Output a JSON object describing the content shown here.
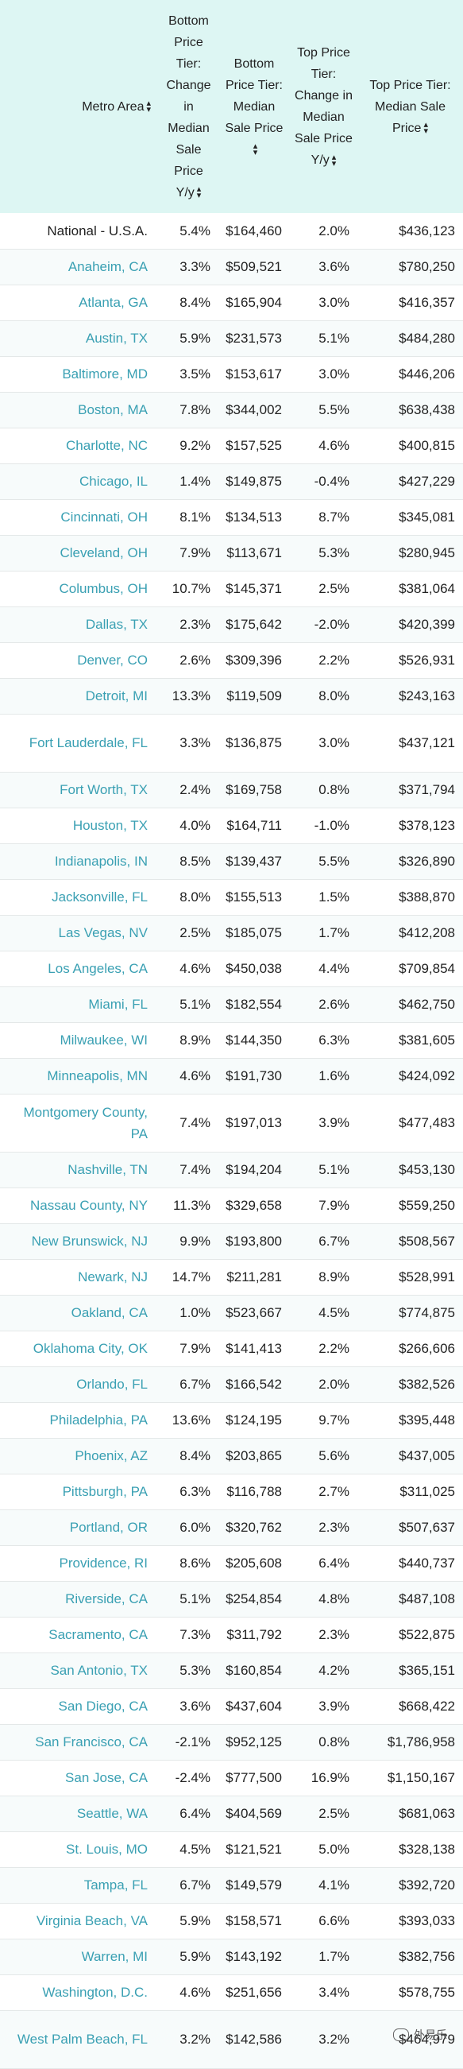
{
  "headers": [
    "Metro Area",
    "Bottom Price Tier: Change in Median Sale Price Y/y",
    "Bottom Price Tier: Median Sale Price",
    "Top Price Tier: Change in Median Sale Price Y/y",
    "Top Price Tier: Median Sale Price"
  ],
  "rows": [
    [
      "National - U.S.A.",
      "5.4%",
      "$164,460",
      "2.0%",
      "$436,123"
    ],
    [
      "Anaheim, CA",
      "3.3%",
      "$509,521",
      "3.6%",
      "$780,250"
    ],
    [
      "Atlanta, GA",
      "8.4%",
      "$165,904",
      "3.0%",
      "$416,357"
    ],
    [
      "Austin, TX",
      "5.9%",
      "$231,573",
      "5.1%",
      "$484,280"
    ],
    [
      "Baltimore, MD",
      "3.5%",
      "$153,617",
      "3.0%",
      "$446,206"
    ],
    [
      "Boston, MA",
      "7.8%",
      "$344,002",
      "5.5%",
      "$638,438"
    ],
    [
      "Charlotte, NC",
      "9.2%",
      "$157,525",
      "4.6%",
      "$400,815"
    ],
    [
      "Chicago, IL",
      "1.4%",
      "$149,875",
      "-0.4%",
      "$427,229"
    ],
    [
      "Cincinnati, OH",
      "8.1%",
      "$134,513",
      "8.7%",
      "$345,081"
    ],
    [
      "Cleveland, OH",
      "7.9%",
      "$113,671",
      "5.3%",
      "$280,945"
    ],
    [
      "Columbus, OH",
      "10.7%",
      "$145,371",
      "2.5%",
      "$381,064"
    ],
    [
      "Dallas, TX",
      "2.3%",
      "$175,642",
      "-2.0%",
      "$420,399"
    ],
    [
      "Denver, CO",
      "2.6%",
      "$309,396",
      "2.2%",
      "$526,931"
    ],
    [
      "Detroit, MI",
      "13.3%",
      "$119,509",
      "8.0%",
      "$243,163"
    ],
    [
      "Fort Lauderdale, FL",
      "3.3%",
      "$136,875",
      "3.0%",
      "$437,121"
    ],
    [
      "Fort Worth, TX",
      "2.4%",
      "$169,758",
      "0.8%",
      "$371,794"
    ],
    [
      "Houston, TX",
      "4.0%",
      "$164,711",
      "-1.0%",
      "$378,123"
    ],
    [
      "Indianapolis, IN",
      "8.5%",
      "$139,437",
      "5.5%",
      "$326,890"
    ],
    [
      "Jacksonville, FL",
      "8.0%",
      "$155,513",
      "1.5%",
      "$388,870"
    ],
    [
      "Las Vegas, NV",
      "2.5%",
      "$185,075",
      "1.7%",
      "$412,208"
    ],
    [
      "Los Angeles, CA",
      "4.6%",
      "$450,038",
      "4.4%",
      "$709,854"
    ],
    [
      "Miami, FL",
      "5.1%",
      "$182,554",
      "2.6%",
      "$462,750"
    ],
    [
      "Milwaukee, WI",
      "8.9%",
      "$144,350",
      "6.3%",
      "$381,605"
    ],
    [
      "Minneapolis, MN",
      "4.6%",
      "$191,730",
      "1.6%",
      "$424,092"
    ],
    [
      "Montgomery County, PA",
      "7.4%",
      "$197,013",
      "3.9%",
      "$477,483"
    ],
    [
      "Nashville, TN",
      "7.4%",
      "$194,204",
      "5.1%",
      "$453,130"
    ],
    [
      "Nassau County, NY",
      "11.3%",
      "$329,658",
      "7.9%",
      "$559,250"
    ],
    [
      "New Brunswick, NJ",
      "9.9%",
      "$193,800",
      "6.7%",
      "$508,567"
    ],
    [
      "Newark, NJ",
      "14.7%",
      "$211,281",
      "8.9%",
      "$528,991"
    ],
    [
      "Oakland, CA",
      "1.0%",
      "$523,667",
      "4.5%",
      "$774,875"
    ],
    [
      "Oklahoma City, OK",
      "7.9%",
      "$141,413",
      "2.2%",
      "$266,606"
    ],
    [
      "Orlando, FL",
      "6.7%",
      "$166,542",
      "2.0%",
      "$382,526"
    ],
    [
      "Philadelphia, PA",
      "13.6%",
      "$124,195",
      "9.7%",
      "$395,448"
    ],
    [
      "Phoenix, AZ",
      "8.4%",
      "$203,865",
      "5.6%",
      "$437,005"
    ],
    [
      "Pittsburgh, PA",
      "6.3%",
      "$116,788",
      "2.7%",
      "$311,025"
    ],
    [
      "Portland, OR",
      "6.0%",
      "$320,762",
      "2.3%",
      "$507,637"
    ],
    [
      "Providence, RI",
      "8.6%",
      "$205,608",
      "6.4%",
      "$440,737"
    ],
    [
      "Riverside, CA",
      "5.1%",
      "$254,854",
      "4.8%",
      "$487,108"
    ],
    [
      "Sacramento, CA",
      "7.3%",
      "$311,792",
      "2.3%",
      "$522,875"
    ],
    [
      "San Antonio, TX",
      "5.3%",
      "$160,854",
      "4.2%",
      "$365,151"
    ],
    [
      "San Diego, CA",
      "3.6%",
      "$437,604",
      "3.9%",
      "$668,422"
    ],
    [
      "San Francisco, CA",
      "-2.1%",
      "$952,125",
      "0.8%",
      "$1,786,958"
    ],
    [
      "San Jose, CA",
      "-2.4%",
      "$777,500",
      "16.9%",
      "$1,150,167"
    ],
    [
      "Seattle, WA",
      "6.4%",
      "$404,569",
      "2.5%",
      "$681,063"
    ],
    [
      "St. Louis, MO",
      "4.5%",
      "$121,521",
      "5.0%",
      "$328,138"
    ],
    [
      "Tampa, FL",
      "6.7%",
      "$149,579",
      "4.1%",
      "$392,720"
    ],
    [
      "Virginia Beach, VA",
      "5.9%",
      "$158,571",
      "6.6%",
      "$393,033"
    ],
    [
      "Warren, MI",
      "5.9%",
      "$143,192",
      "1.7%",
      "$382,756"
    ],
    [
      "Washington, D.C.",
      "4.6%",
      "$251,656",
      "3.4%",
      "$578,755"
    ],
    [
      "West Palm Beach, FL",
      "3.2%",
      "$142,586",
      "3.2%",
      "$464,979"
    ]
  ],
  "tall_rows": [
    14,
    24,
    49
  ],
  "watermark": "外易乐",
  "icons": {
    "sort": "sort-arrows-icon",
    "watermark": "wechat-icon"
  }
}
